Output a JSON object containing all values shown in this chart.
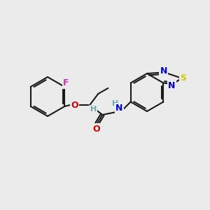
{
  "bg_color": "#ebebeb",
  "bond_color": "#1a1a1a",
  "bond_lw": 1.5,
  "atom_colors": {
    "F": "#cc33aa",
    "O": "#cc0000",
    "N": "#0000cc",
    "S": "#cccc00",
    "H_label": "#66aaaa",
    "C": "#1a1a1a"
  },
  "font_size_atom": 9,
  "font_size_H": 8
}
